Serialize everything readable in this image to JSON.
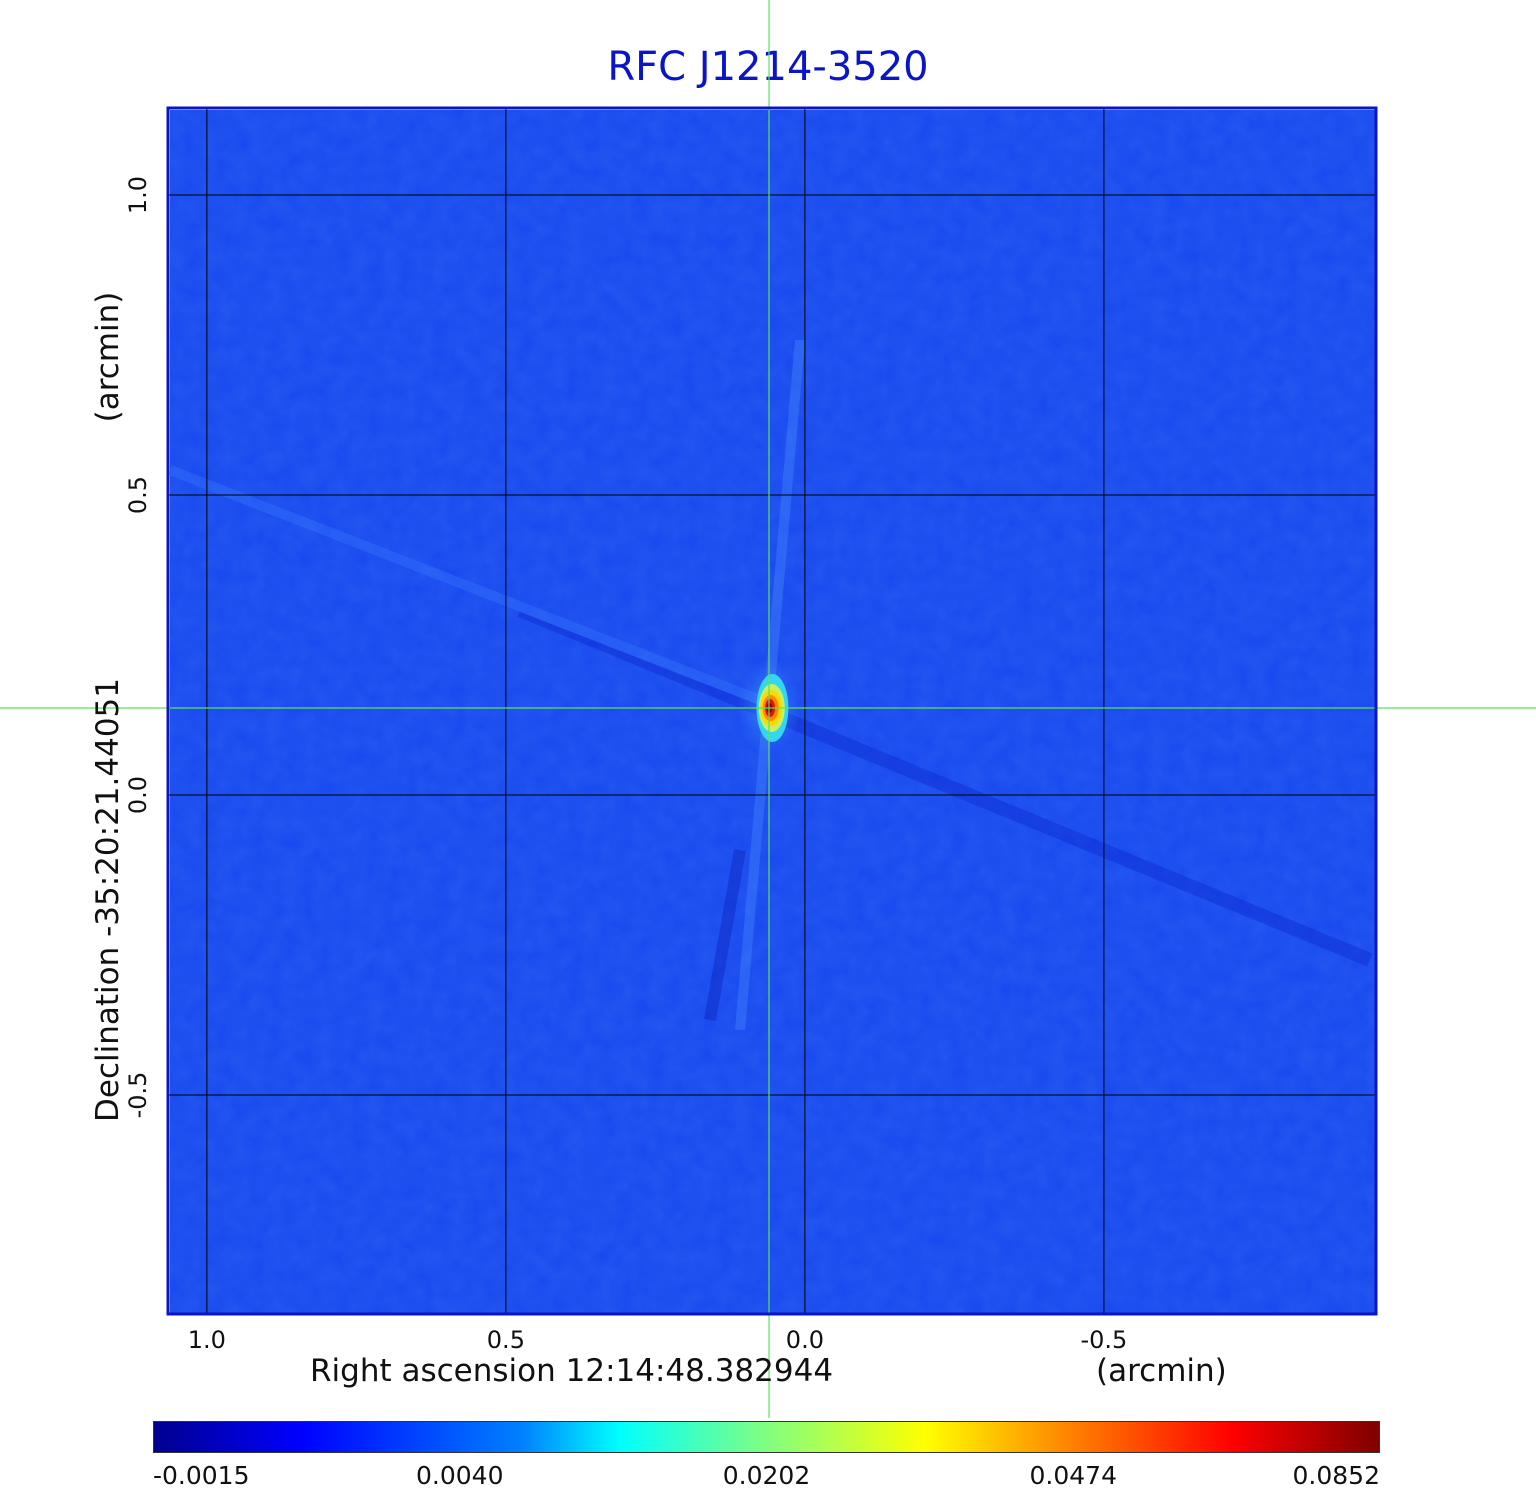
{
  "chart_data": {
    "type": "heatmap",
    "title": "RFC J1214-3520",
    "xlabel": "Right ascension  12:14:48.382944",
    "xunit": "(arcmin)",
    "ylabel": "Declination  -35:20:21.44051",
    "yunit": "(arcmin)",
    "x_ticks": [
      "1.0",
      "0.5",
      "0.0",
      "-0.5"
    ],
    "x_tick_values": [
      1.0,
      0.5,
      0.0,
      -0.5
    ],
    "y_ticks": [
      "1.0",
      "0.5",
      "0.0",
      "-0.5"
    ],
    "y_tick_values": [
      1.0,
      0.5,
      0.0,
      -0.5
    ],
    "xlim": [
      1.065,
      -0.955
    ],
    "ylim": [
      -0.865,
      1.145
    ],
    "crosshair": [
      0.06,
      0.145
    ],
    "source_peak": {
      "x": 0.06,
      "y": 0.145,
      "value": 0.0852
    },
    "grid": true,
    "colormap": "jet",
    "colorbar_ticks": [
      "-0.0015",
      "0.0040",
      "0.0202",
      "0.0474",
      "0.0852"
    ],
    "colorbar_values": [
      -0.0015,
      0.004,
      0.0202,
      0.0474,
      0.0852
    ],
    "colors": {
      "title": "#0a14c8",
      "frame": "#0a14c8",
      "background_map": "#1848f0",
      "crosshair": "#5ae35a",
      "grid": "#000000"
    }
  }
}
